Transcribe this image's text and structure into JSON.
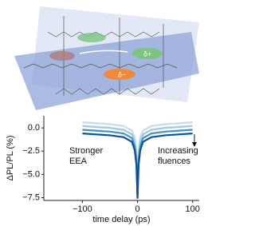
{
  "illustration": {
    "labels": [
      "δ−",
      "δ+"
    ]
  },
  "chart_data": {
    "type": "line",
    "xlabel": "time delay (ps)",
    "ylabel": "ΔPL/PL (%)",
    "x": [
      -100,
      -75,
      -50,
      -25,
      -10,
      -5,
      -2,
      0,
      2,
      5,
      10,
      25,
      50,
      75,
      100
    ],
    "series": [
      {
        "color": "#c6dbef",
        "values": [
          0.6,
          0.5,
          0.4,
          0.2,
          -0.3,
          -1,
          -2.5,
          -7.0,
          -2.5,
          -1,
          -0.3,
          0.2,
          0.4,
          0.5,
          0.6
        ]
      },
      {
        "color": "#9ecae1",
        "values": [
          0.2,
          0.1,
          0,
          -0.2,
          -0.7,
          -1.5,
          -3,
          -7.2,
          -3,
          -1.5,
          -0.7,
          -0.2,
          0,
          0.1,
          0.2
        ]
      },
      {
        "color": "#4292c6",
        "values": [
          -0.2,
          -0.3,
          -0.4,
          -0.6,
          -1.1,
          -2,
          -3.5,
          -7.4,
          -3.5,
          -2,
          -1.1,
          -0.6,
          -0.4,
          -0.3,
          -0.2
        ]
      },
      {
        "color": "#08519c",
        "values": [
          -0.6,
          -0.7,
          -0.8,
          -1,
          -1.5,
          -2.4,
          -4,
          -7.6,
          -4,
          -2.4,
          -1.5,
          -1,
          -0.8,
          -0.7,
          -0.6
        ]
      }
    ],
    "xlim": [
      -170,
      112
    ],
    "ylim": [
      -7.8,
      1.3
    ],
    "xticks": [
      {
        "value": -100,
        "label": "−100"
      },
      0,
      100
    ],
    "yticks": [
      {
        "value": 0,
        "label": "0.0"
      },
      {
        "value": -2.5,
        "label": "−2.5"
      },
      {
        "value": -5,
        "label": "−5.0"
      },
      {
        "value": -7.5,
        "label": "−7.5"
      }
    ],
    "annotations": [
      "Stronger",
      "EEA",
      "Increasing",
      "fluences"
    ]
  }
}
